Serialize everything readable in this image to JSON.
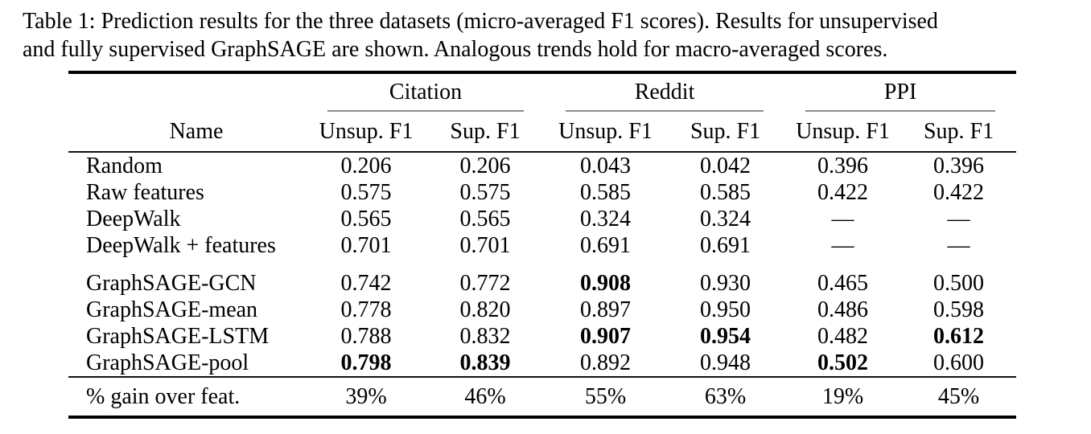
{
  "caption": {
    "line1": "Table 1: Prediction results for the three datasets (micro-averaged F1 scores). Results for unsupervised",
    "line2": "and fully supervised GraphSAGE are shown. Analogous trends hold for macro-averaged scores."
  },
  "table": {
    "name_header": "Name",
    "groups": [
      {
        "label": "Citation"
      },
      {
        "label": "Reddit"
      },
      {
        "label": "PPI"
      }
    ],
    "sub_headers": [
      "Unsup. F1",
      "Sup. F1",
      "Unsup. F1",
      "Sup. F1",
      "Unsup. F1",
      "Sup. F1"
    ],
    "rows": [
      {
        "name": "Random",
        "values": [
          "0.206",
          "0.206",
          "0.043",
          "0.042",
          "0.396",
          "0.396"
        ],
        "bold": [
          false,
          false,
          false,
          false,
          false,
          false
        ]
      },
      {
        "name": "Raw features",
        "values": [
          "0.575",
          "0.575",
          "0.585",
          "0.585",
          "0.422",
          "0.422"
        ],
        "bold": [
          false,
          false,
          false,
          false,
          false,
          false
        ]
      },
      {
        "name": "DeepWalk",
        "values": [
          "0.565",
          "0.565",
          "0.324",
          "0.324",
          "—",
          "—"
        ],
        "bold": [
          false,
          false,
          false,
          false,
          false,
          false
        ]
      },
      {
        "name": "DeepWalk + features",
        "values": [
          "0.701",
          "0.701",
          "0.691",
          "0.691",
          "—",
          "—"
        ],
        "bold": [
          false,
          false,
          false,
          false,
          false,
          false
        ]
      },
      {
        "name": "GraphSAGE-GCN",
        "values": [
          "0.742",
          "0.772",
          "0.908",
          "0.930",
          "0.465",
          "0.500"
        ],
        "bold": [
          false,
          false,
          true,
          false,
          false,
          false
        ]
      },
      {
        "name": "GraphSAGE-mean",
        "values": [
          "0.778",
          "0.820",
          "0.897",
          "0.950",
          "0.486",
          "0.598"
        ],
        "bold": [
          false,
          false,
          false,
          false,
          false,
          false
        ]
      },
      {
        "name": "GraphSAGE-LSTM",
        "values": [
          "0.788",
          "0.832",
          "0.907",
          "0.954",
          "0.482",
          "0.612"
        ],
        "bold": [
          false,
          false,
          true,
          true,
          false,
          true
        ]
      },
      {
        "name": "GraphSAGE-pool",
        "values": [
          "0.798",
          "0.839",
          "0.892",
          "0.948",
          "0.502",
          "0.600"
        ],
        "bold": [
          true,
          true,
          false,
          false,
          true,
          false
        ]
      }
    ],
    "footer": {
      "name": "% gain over feat.",
      "values": [
        "39%",
        "46%",
        "55%",
        "63%",
        "19%",
        "45%"
      ]
    }
  },
  "colors": {
    "text": "#000000",
    "rule_heavy": "#000000",
    "rule_light": "#8c8c8c",
    "background": "#ffffff"
  }
}
